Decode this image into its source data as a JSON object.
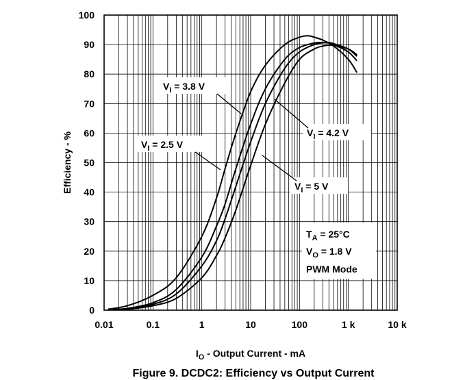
{
  "figure_caption": "Figure 9. DCDC2: Efficiency vs Output Current",
  "chart_data": {
    "type": "line",
    "x_scale": "log",
    "xlim": [
      0.01,
      10000
    ],
    "ylim": [
      0,
      100
    ],
    "grid": true,
    "xlabel": {
      "main": "I",
      "sub": "O",
      "rest": " - Output Current - mA"
    },
    "ylabel": "Efficiency - %",
    "x_ticks": [
      0.01,
      0.1,
      1,
      10,
      100,
      1000,
      10000
    ],
    "x_tick_labels": [
      "0.01",
      "0.1",
      "1",
      "10",
      "100",
      "1 k",
      "10 k"
    ],
    "y_ticks": [
      0,
      10,
      20,
      30,
      40,
      50,
      60,
      70,
      80,
      90,
      100
    ],
    "y_tick_labels": [
      "0",
      "10",
      "20",
      "30",
      "40",
      "50",
      "60",
      "70",
      "80",
      "90",
      "100"
    ],
    "series": [
      {
        "name": "V_I = 2.5 V",
        "x": [
          0.012,
          0.03,
          0.1,
          0.3,
          1,
          2,
          3,
          5,
          10,
          20,
          50,
          100,
          150,
          200,
          300,
          500,
          1000,
          1500
        ],
        "y": [
          0.3,
          1.5,
          5,
          11,
          25,
          38,
          48,
          60,
          74,
          83,
          90,
          92.5,
          93,
          92.5,
          91.5,
          89.5,
          85,
          80.5
        ]
      },
      {
        "name": "V_I = 3.8 V",
        "x": [
          0.015,
          0.03,
          0.1,
          0.3,
          1,
          2,
          3,
          5,
          10,
          20,
          50,
          100,
          200,
          300,
          400,
          500,
          1000,
          1500
        ],
        "y": [
          0.2,
          0.6,
          2.5,
          7,
          18,
          28.5,
          36,
          48,
          63,
          75,
          85,
          89,
          90.5,
          90.7,
          90.5,
          90,
          87.5,
          84.5
        ]
      },
      {
        "name": "V_I = 4.2 V",
        "x": [
          0.015,
          0.03,
          0.1,
          0.3,
          1,
          2,
          3,
          5,
          10,
          20,
          50,
          100,
          200,
          300,
          400,
          500,
          1000,
          1500
        ],
        "y": [
          0.2,
          0.5,
          2,
          5.5,
          15,
          23.5,
          31,
          42,
          57,
          70,
          82,
          87.5,
          90,
          90.6,
          90.7,
          90.3,
          88.5,
          86
        ]
      },
      {
        "name": "V_I = 5 V",
        "x": [
          0.015,
          0.03,
          0.1,
          0.3,
          1,
          2,
          3,
          5,
          10,
          20,
          50,
          100,
          200,
          300,
          400,
          500,
          1000,
          1500
        ],
        "y": [
          0.1,
          0.3,
          1.5,
          4,
          11,
          18.5,
          24.5,
          34,
          49,
          63,
          77,
          85,
          88.5,
          89.5,
          89.8,
          89.7,
          88.5,
          86.5
        ]
      }
    ],
    "annotations": {
      "v25": {
        "main": "V",
        "sub": "I",
        "rest": " = 2.5 V"
      },
      "v38": {
        "main": "V",
        "sub": "I",
        "rest": " = 3.8 V"
      },
      "v42": {
        "main": "V",
        "sub": "I",
        "rest": " = 4.2 V"
      },
      "v5": {
        "main": "V",
        "sub": "I",
        "rest": " = 5 V"
      }
    },
    "conditions": {
      "ta": {
        "main": "T",
        "sub": "A",
        "rest": " = 25°C"
      },
      "vo": {
        "main": "V",
        "sub": "O",
        "rest": " = 1.8 V"
      },
      "mode": "PWM Mode"
    }
  }
}
